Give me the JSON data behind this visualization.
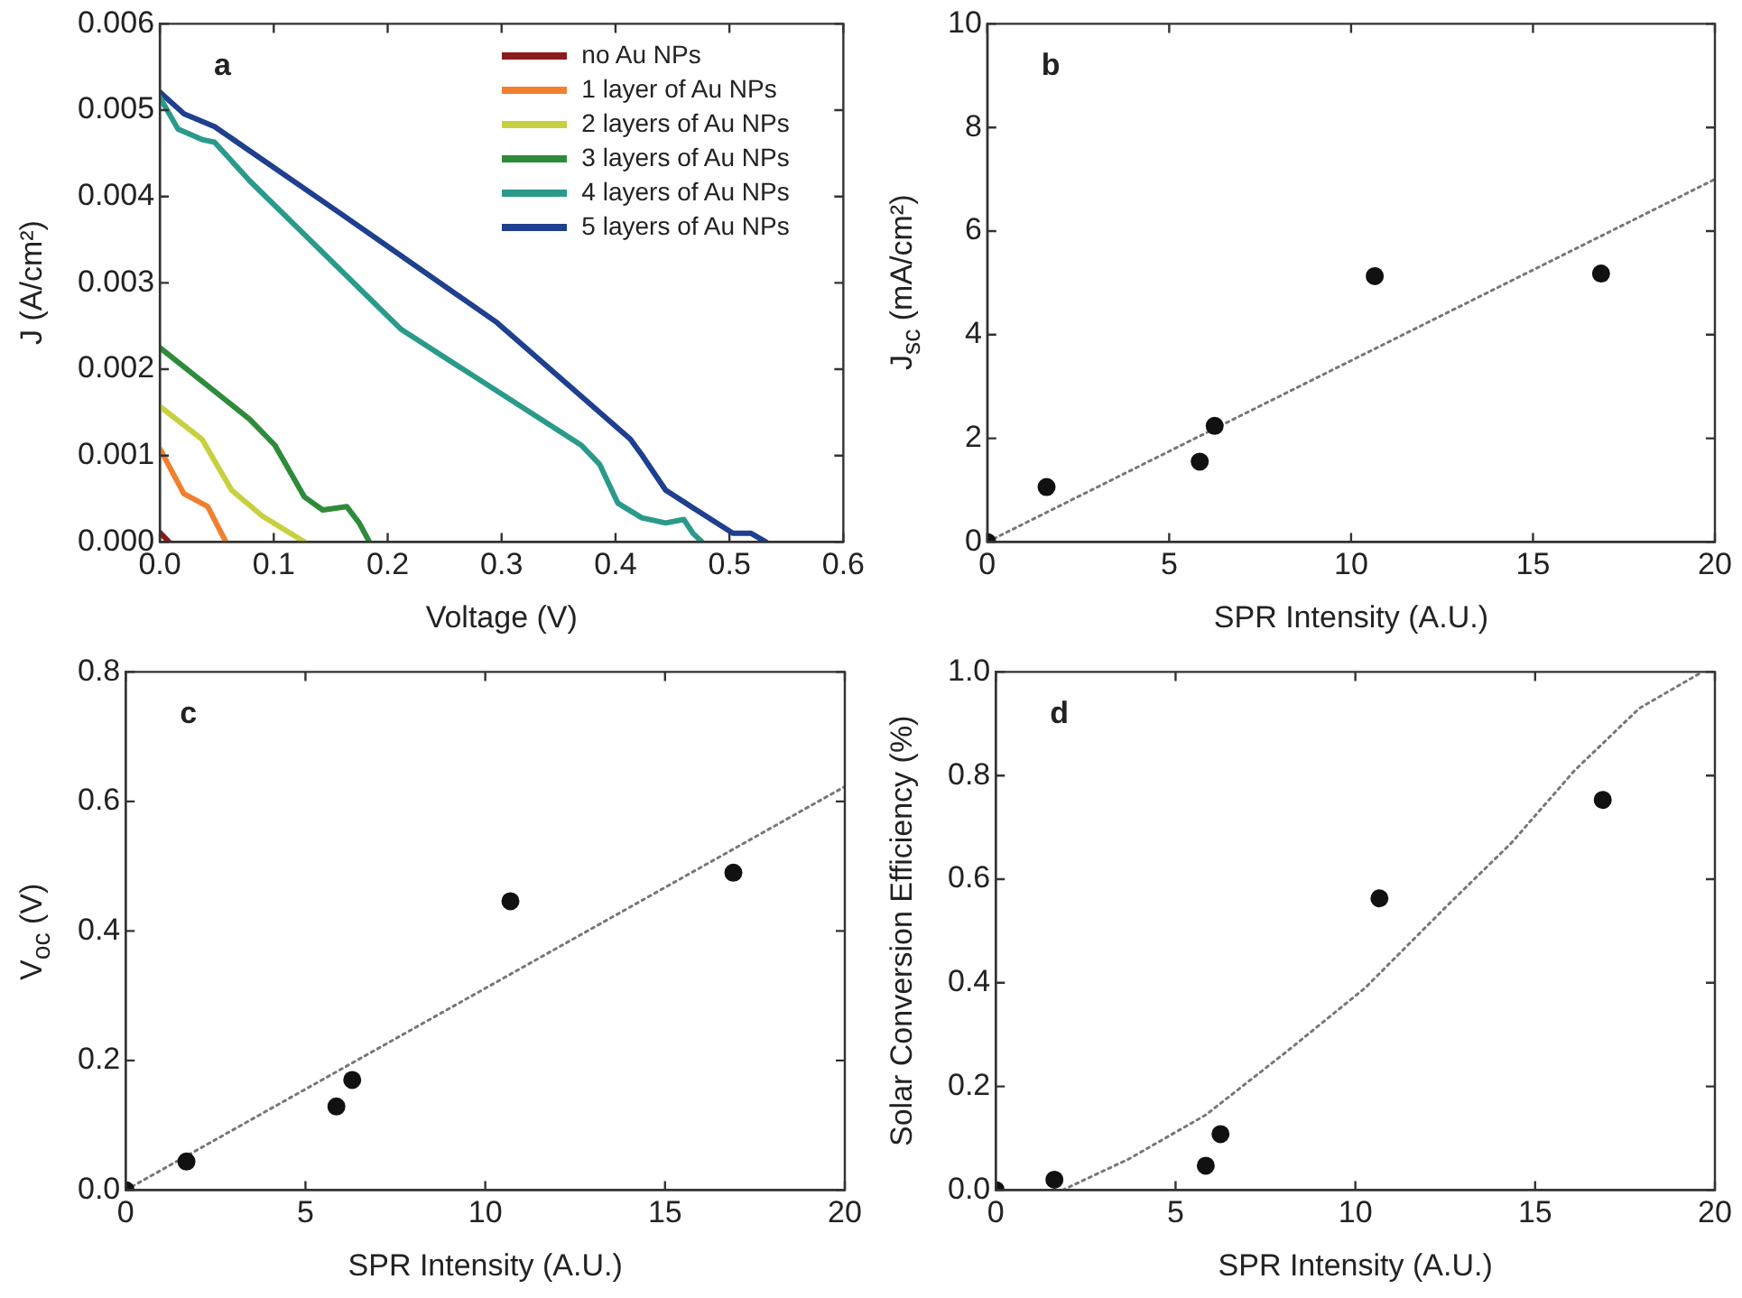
{
  "chart_data": [
    {
      "type": "line",
      "annotations": [
        "a"
      ],
      "xlabel": "Voltage (V)",
      "ylabel": "J (A/cm²)",
      "legend": "top right",
      "xlim": [
        0,
        0.6
      ],
      "xticks": [
        {
          "value": 0,
          "label": "0.0"
        },
        {
          "value": 0.1,
          "label": "0.1"
        },
        {
          "value": 0.2,
          "label": "0.2"
        },
        {
          "value": 0.3,
          "label": "0.3"
        },
        {
          "value": 0.4,
          "label": "0.4"
        },
        {
          "value": 0.5,
          "label": "0.5"
        },
        {
          "value": 0.6,
          "label": "0.6"
        }
      ],
      "ylim": [
        0,
        0.006
      ],
      "yticks": [
        {
          "value": 0,
          "label": "0.000"
        },
        {
          "value": 0.001,
          "label": "0.001"
        },
        {
          "value": 0.002,
          "label": "0.002"
        },
        {
          "value": 0.003,
          "label": "0.003"
        },
        {
          "value": 0.004,
          "label": "0.004"
        },
        {
          "value": 0.005,
          "label": "0.005"
        },
        {
          "value": 0.006,
          "label": "0.006"
        }
      ],
      "series": [
        {
          "name": "no Au NPs",
          "color": "#8b1a1a",
          "x": [
            0,
            0.008
          ],
          "values": [
            0.00011,
            0
          ]
        },
        {
          "name": "1 layer of Au NPs",
          "color": "#f08030",
          "x": [
            0,
            0.021,
            0.042,
            0.058
          ],
          "values": [
            0.00108,
            0.00056,
            0.00041,
            0
          ]
        },
        {
          "name": "2 layers of Au NPs",
          "color": "#c8d040",
          "x": [
            0,
            0.037,
            0.063,
            0.09,
            0.127
          ],
          "values": [
            0.00157,
            0.00119,
            0.0006,
            0.0003,
            0
          ]
        },
        {
          "name": "3 layers of Au NPs",
          "color": "#2e8b3a",
          "x": [
            0,
            0.079,
            0.101,
            0.127,
            0.143,
            0.164,
            0.175,
            0.184
          ],
          "values": [
            0.00225,
            0.00142,
            0.00112,
            0.00052,
            0.00037,
            0.00041,
            0.00022,
            0
          ]
        },
        {
          "name": "4 layers of Au NPs",
          "color": "#2a9a8a",
          "x": [
            0,
            0.016,
            0.037,
            0.048,
            0.079,
            0.212,
            0.37,
            0.386,
            0.402,
            0.423,
            0.444,
            0.46,
            0.468,
            0.476
          ],
          "values": [
            0.00515,
            0.00478,
            0.00466,
            0.00463,
            0.00418,
            0.00246,
            0.00112,
            0.0009,
            0.00045,
            0.00028,
            0.00022,
            0.00026,
            0.0001,
            0
          ]
        },
        {
          "name": "5 layers of Au NPs",
          "color": "#1f3f8f",
          "x": [
            0,
            0.021,
            0.048,
            0.159,
            0.296,
            0.413,
            0.423,
            0.444,
            0.471,
            0.503,
            0.519,
            0.532
          ],
          "values": [
            0.00521,
            0.00496,
            0.00481,
            0.0038,
            0.00254,
            0.00119,
            0.00101,
            0.0006,
            0.00037,
            0.0001,
            0.0001,
            0
          ]
        }
      ]
    },
    {
      "type": "scatter",
      "annotations": [
        "b"
      ],
      "xlabel": "SPR Intensity (A.U.)",
      "ylabel": "J$_{sc}$ (mA/cm²)",
      "xlim": [
        0,
        20
      ],
      "xticks": [
        0,
        5,
        10,
        15,
        20
      ],
      "ylim": [
        0,
        10
      ],
      "yticks": [
        0,
        2,
        4,
        6,
        8,
        10
      ],
      "series": [
        {
          "color": "#111111",
          "marker": "circle",
          "x": [
            0,
            1.63,
            5.84,
            6.25,
            10.65,
            16.87
          ],
          "values": [
            0,
            1.06,
            1.55,
            2.24,
            5.13,
            5.18
          ]
        },
        {
          "type": "line",
          "color": "#777777",
          "line_style": "dotted",
          "x": [
            0,
            20
          ],
          "values": [
            0,
            7.0
          ]
        }
      ]
    },
    {
      "type": "scatter",
      "annotations": [
        "c"
      ],
      "xlabel": "SPR Intensity (A.U.)",
      "ylabel": "V$_{oc}$ (V)",
      "xlim": [
        0,
        20
      ],
      "xticks": [
        0,
        5,
        10,
        15,
        20
      ],
      "ylim": [
        0,
        0.8
      ],
      "yticks": [
        {
          "value": 0,
          "label": "0.0"
        },
        {
          "value": 0.2,
          "label": "0.2"
        },
        {
          "value": 0.4,
          "label": "0.4"
        },
        {
          "value": 0.6,
          "label": "0.6"
        },
        {
          "value": 0.8,
          "label": "0.8"
        }
      ],
      "series": [
        {
          "color": "#111111",
          "marker": "circle",
          "x": [
            0,
            1.69,
            5.86,
            6.3,
            10.7,
            16.9
          ],
          "values": [
            0,
            0.044,
            0.129,
            0.17,
            0.446,
            0.49
          ]
        },
        {
          "type": "line",
          "color": "#777777",
          "line_style": "dotted",
          "x": [
            0,
            20
          ],
          "values": [
            0,
            0.623
          ]
        }
      ]
    },
    {
      "type": "scatter",
      "annotations": [
        "d"
      ],
      "xlabel": "SPR Intensity (A.U.)",
      "ylabel": "Solar Conversion Efficiency (%)",
      "xlim": [
        0,
        20
      ],
      "xticks": [
        0,
        5,
        10,
        15,
        20
      ],
      "ylim": [
        0,
        1.0
      ],
      "yticks": [
        {
          "value": 0,
          "label": "0.0"
        },
        {
          "value": 0.2,
          "label": "0.2"
        },
        {
          "value": 0.4,
          "label": "0.4"
        },
        {
          "value": 0.6,
          "label": "0.6"
        },
        {
          "value": 0.8,
          "label": "0.8"
        },
        {
          "value": 1.0,
          "label": "1.0"
        }
      ],
      "series": [
        {
          "color": "#111111",
          "marker": "circle",
          "x": [
            0,
            1.63,
            5.84,
            6.25,
            10.67,
            16.88
          ],
          "values": [
            0,
            0.02,
            0.047,
            0.108,
            0.563,
            0.753
          ]
        },
        {
          "type": "line",
          "color": "#777777",
          "line_style": "dotted",
          "x": [
            1.86,
            3.7,
            5.84,
            8.14,
            10.27,
            12.57,
            14.34,
            16.1,
            17.9,
            19.65
          ],
          "values": [
            0,
            0.06,
            0.145,
            0.27,
            0.39,
            0.55,
            0.67,
            0.81,
            0.93,
            1.0
          ]
        }
      ]
    }
  ]
}
